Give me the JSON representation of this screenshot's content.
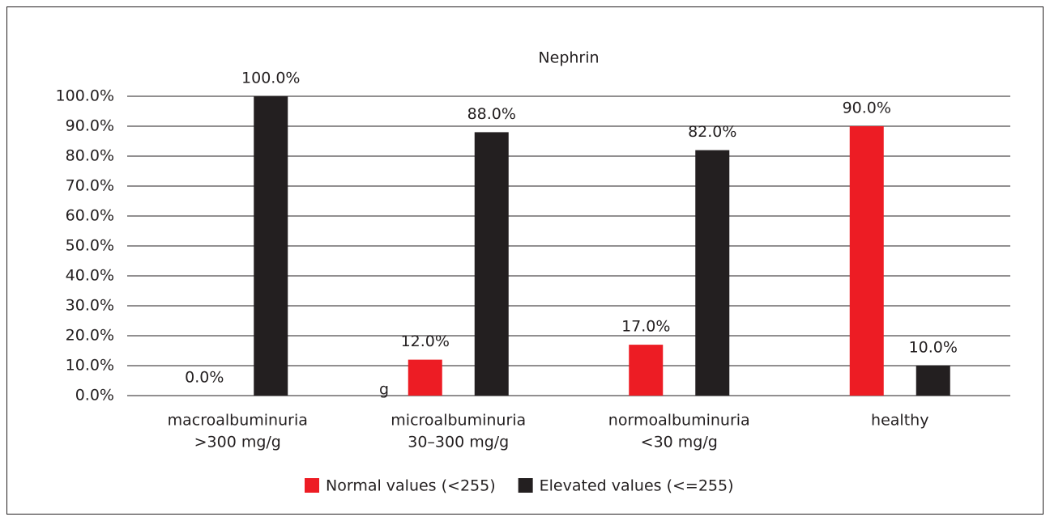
{
  "chart_data": {
    "type": "bar",
    "title": "Nephrin",
    "categories": [
      [
        "macroalbuminuria",
        ">300 mg/g"
      ],
      [
        "microalbuminuria",
        "30–300 mg/g"
      ],
      [
        "normoalbuminuria",
        "<30 mg/g"
      ],
      [
        "healthy"
      ]
    ],
    "series": [
      {
        "name": "Normal values (<255)",
        "color": "#ed1c24",
        "values": [
          0,
          12,
          17,
          90
        ],
        "value_labels": [
          "0.0%",
          "12.0%",
          "17.0%",
          "90.0%"
        ]
      },
      {
        "name": "Elevated values (<=255)",
        "color": "#231f20",
        "values": [
          100,
          88,
          82,
          10
        ],
        "value_labels": [
          "100.0%",
          "88.0%",
          "82.0%",
          "10.0%"
        ]
      }
    ],
    "ylim": [
      0,
      100
    ],
    "yticks": [
      {
        "value": 0,
        "label": "0.0%"
      },
      {
        "value": 10,
        "label": "10.0%"
      },
      {
        "value": 20,
        "label": "20.0%"
      },
      {
        "value": 30,
        "label": "30.0%"
      },
      {
        "value": 40,
        "label": "40.0%"
      },
      {
        "value": 50,
        "label": "50.0%"
      },
      {
        "value": 60,
        "label": "60.0%"
      },
      {
        "value": 70,
        "label": "70.0%"
      },
      {
        "value": 80,
        "label": "80.0%"
      },
      {
        "value": 90,
        "label": "90.0%"
      },
      {
        "value": 100,
        "label": "100.0%"
      }
    ],
    "grid": true,
    "legend": "bottom",
    "annotations": [
      "g"
    ]
  }
}
